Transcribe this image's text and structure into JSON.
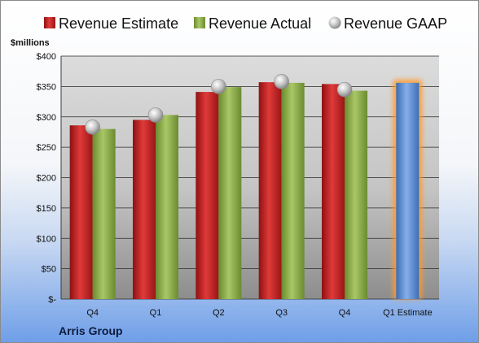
{
  "company": "Arris Group",
  "chart_data": {
    "type": "bar",
    "y_unit_label": "$millions",
    "categories": [
      "Q4",
      "Q1",
      "Q2",
      "Q3",
      "Q4",
      "Q1 Estimate"
    ],
    "series": [
      {
        "name": "Revenue Estimate",
        "kind": "bar",
        "color": "#d02424",
        "values": [
          286,
          295,
          341,
          357,
          354,
          null
        ]
      },
      {
        "name": "Revenue Actual",
        "kind": "bar",
        "color": "#8fb04a",
        "values": [
          280,
          303,
          349,
          356,
          343,
          null
        ]
      },
      {
        "name": "Revenue GAAP",
        "kind": "marker",
        "color": "#c0c0c0",
        "values": [
          283,
          303,
          350,
          358,
          345,
          null
        ]
      },
      {
        "name": "Q1 Estimate",
        "kind": "highlight-bar",
        "color": "#5b8fd6",
        "values": [
          null,
          null,
          null,
          null,
          null,
          356
        ]
      }
    ],
    "ylim": [
      0,
      400
    ],
    "y_ticks": [
      0,
      50,
      100,
      150,
      200,
      250,
      300,
      350,
      400
    ],
    "y_tick_labels": [
      "$-",
      "$50",
      "$100",
      "$150",
      "$200",
      "$250",
      "$300",
      "$350",
      "$400"
    ],
    "grid": true,
    "legend_position": "top"
  }
}
